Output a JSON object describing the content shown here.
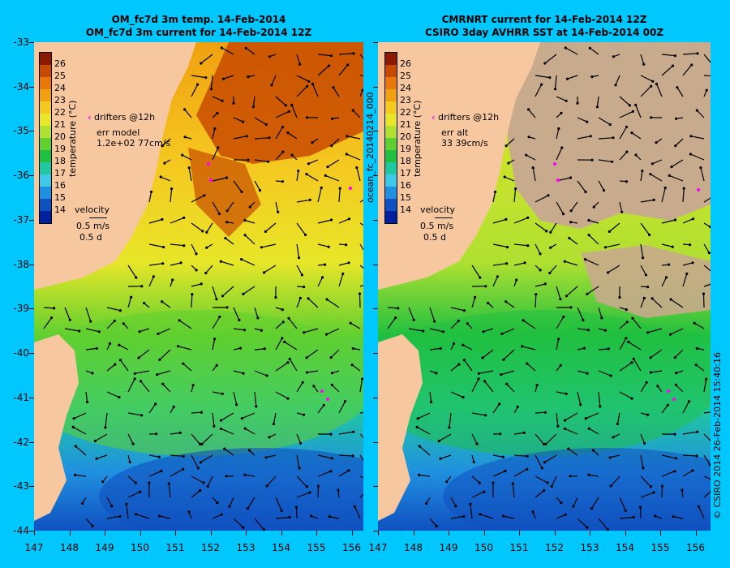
{
  "left_panel": {
    "title_line1": "OM_fc7d 3m temp. 14-Feb-2014",
    "title_line2": "OM_fc7d 3m current for 14-Feb-2014 12Z",
    "drifters_label": "drifters @12h",
    "err_label": "err model",
    "err_value": "1.2e+02 77cm/s",
    "velocity_label": "velocity",
    "velocity_scale": "0.5 m/s",
    "velocity_time": "0.5 d",
    "colorbar_label": "temperature (°C)"
  },
  "right_panel": {
    "title_line1": "CMRNRT current for 14-Feb-2014 12Z",
    "title_line2": "CSIRO 3day AVHRR SST at 14-Feb-2014 00Z",
    "drifters_label": "drifters @12h",
    "err_label": "err alt",
    "err_value": "33 39cm/s",
    "velocity_label": "velocity",
    "velocity_scale": "0.5 m/s",
    "velocity_time": "0.5 d",
    "colorbar_label": "temperature (°C)"
  },
  "mid_label": "ocean_fc_20140214_000",
  "credit": "© CSIRO 2014   26-Feb-2014 15:40:16",
  "latitude_ticks": [
    "-33",
    "-34",
    "-35",
    "-36",
    "-37",
    "-38",
    "-39",
    "-40",
    "-41",
    "-42",
    "-43",
    "-44"
  ],
  "longitude_ticks": [
    "147",
    "148",
    "149",
    "150",
    "151",
    "152",
    "153",
    "154",
    "155",
    "156"
  ],
  "colorbar_ticks": [
    "26",
    "25",
    "24",
    "23",
    "22",
    "21",
    "20",
    "19",
    "18",
    "17",
    "16",
    "15",
    "14"
  ],
  "colors": {
    "background": "#00c8ff",
    "land": "#f7c8a0",
    "cloud": "#c8aa8c",
    "drifter": "#ff00ff",
    "colorbar": [
      "#8b1a00",
      "#c84a00",
      "#e8780a",
      "#f0a010",
      "#f5c820",
      "#e8e628",
      "#b0e030",
      "#60d030",
      "#20c040",
      "#20c8a0",
      "#40c8e8",
      "#2090e0",
      "#1050c0",
      "#0020a0"
    ]
  }
}
